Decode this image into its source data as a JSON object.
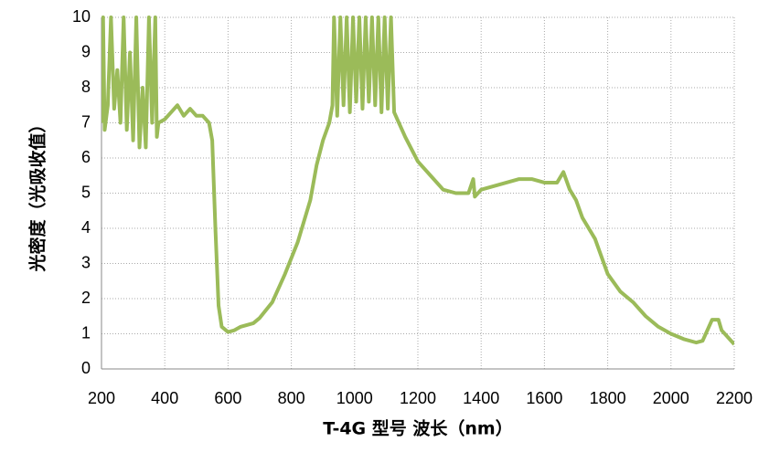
{
  "chart_data": {
    "type": "line",
    "xlabel": "T-4G 型号   波长（nm）",
    "ylabel": "光密度（光吸收值）",
    "x": [
      200,
      205,
      210,
      220,
      230,
      240,
      250,
      260,
      270,
      280,
      290,
      300,
      310,
      320,
      330,
      340,
      350,
      360,
      370,
      375,
      380,
      400,
      420,
      440,
      460,
      480,
      500,
      520,
      540,
      550,
      560,
      570,
      580,
      600,
      620,
      640,
      680,
      700,
      740,
      780,
      820,
      860,
      880,
      900,
      920,
      930,
      935,
      945,
      955,
      965,
      975,
      985,
      995,
      1005,
      1015,
      1025,
      1035,
      1045,
      1055,
      1065,
      1075,
      1085,
      1095,
      1105,
      1115,
      1125,
      1135,
      1160,
      1200,
      1240,
      1280,
      1320,
      1360,
      1375,
      1380,
      1400,
      1440,
      1480,
      1520,
      1560,
      1600,
      1640,
      1660,
      1680,
      1700,
      1720,
      1760,
      1800,
      1840,
      1880,
      1920,
      1960,
      2000,
      2040,
      2080,
      2100,
      2130,
      2150,
      2160,
      2200
    ],
    "values": [
      7.0,
      10,
      6.8,
      7.5,
      10,
      7.4,
      8.5,
      7.0,
      10,
      6.8,
      9.0,
      6.5,
      10,
      6.3,
      8.0,
      6.3,
      10,
      7.0,
      10,
      6.6,
      7.0,
      7.1,
      7.3,
      7.5,
      7.2,
      7.4,
      7.2,
      7.2,
      7.0,
      6.5,
      4.0,
      1.8,
      1.2,
      1.05,
      1.1,
      1.2,
      1.3,
      1.45,
      1.9,
      2.7,
      3.6,
      4.8,
      5.8,
      6.5,
      7.0,
      7.5,
      10,
      7.2,
      10,
      7.5,
      10,
      7.3,
      10,
      7.6,
      10,
      7.4,
      10,
      7.6,
      10,
      7.5,
      10,
      7.3,
      10,
      7.4,
      10,
      7.3,
      7.1,
      6.6,
      5.9,
      5.5,
      5.1,
      5.0,
      5.0,
      5.4,
      4.9,
      5.1,
      5.2,
      5.3,
      5.4,
      5.4,
      5.3,
      5.3,
      5.6,
      5.1,
      4.8,
      4.3,
      3.7,
      2.7,
      2.2,
      1.9,
      1.5,
      1.2,
      1.0,
      0.85,
      0.75,
      0.8,
      1.4,
      1.4,
      1.1,
      0.7
    ],
    "color": "#9bbb59",
    "xlim": [
      200,
      2200
    ],
    "xticks": [
      200,
      400,
      600,
      800,
      1000,
      1200,
      1400,
      1600,
      1800,
      2000,
      2200
    ],
    "ylim": [
      0,
      10
    ],
    "yticks": [
      0,
      1,
      2,
      3,
      4,
      5,
      6,
      7,
      8,
      9,
      10
    ],
    "grid": true
  }
}
